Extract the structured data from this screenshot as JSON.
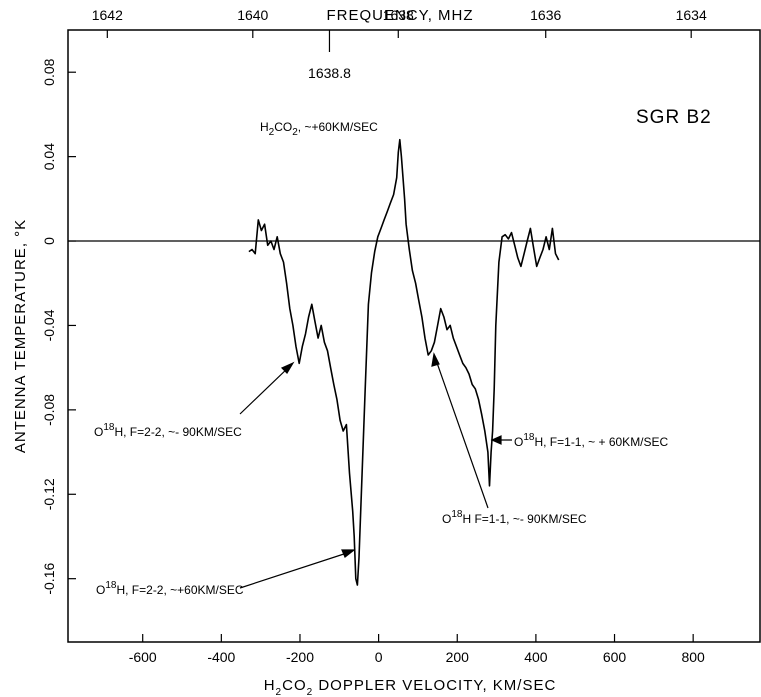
{
  "chart_data": {
    "type": "line",
    "xlabel": {
      "prefix": "H",
      "sub1": "2",
      "mid": "CO",
      "sub2": "2",
      "rest": " DOPPLER VELOCITY,  KM/SEC"
    },
    "ylabel": "ANTENNA TEMPERATURE,   °K",
    "top_xlabel": "FREQUENCY, MHZ",
    "xlim": [
      -790,
      970
    ],
    "ylim": [
      -0.19,
      0.1
    ],
    "x_ticks": [
      -600,
      -400,
      -200,
      0,
      200,
      400,
      600,
      800
    ],
    "x_tick_labels": [
      "-600",
      "-400",
      "-200",
      "0",
      "200",
      "400",
      "600",
      "800"
    ],
    "y_ticks": [
      0.08,
      0.04,
      0,
      -0.04,
      -0.08,
      -0.12,
      -0.16
    ],
    "y_tick_labels": [
      "0.08",
      "0.04",
      "0",
      "-0.04",
      "-0.08",
      "-0.12",
      "-0.16"
    ],
    "top_ticks": [
      {
        "velocity": -690,
        "label": "1642"
      },
      {
        "velocity": -320,
        "label": "1640"
      },
      {
        "velocity": 50,
        "label": "1638"
      },
      {
        "velocity": 425,
        "label": "1636"
      },
      {
        "velocity": 795,
        "label": "1634"
      }
    ],
    "reference_mark": {
      "velocity": -125,
      "label": "1638.8"
    },
    "zero_line": true,
    "series": [
      {
        "x": [
          -330,
          -322,
          -314,
          -306,
          -298,
          -290,
          -282,
          -274,
          -266,
          -258,
          -250,
          -242,
          -234,
          -226,
          -218,
          -210,
          -202,
          -194,
          -186,
          -178,
          -170,
          -162,
          -154,
          -146,
          -138,
          -130,
          -122,
          -114,
          -106,
          -98,
          -90,
          -82,
          -74,
          -66,
          -62,
          -58,
          -54,
          -50,
          -42,
          -34,
          -26,
          -18,
          -10,
          -2,
          6,
          14,
          22,
          30,
          38,
          46,
          50,
          54,
          58,
          62,
          66,
          70,
          78,
          86,
          94,
          102,
          110,
          118,
          126,
          134,
          142,
          150,
          158,
          166,
          174,
          182,
          190,
          198,
          206,
          214,
          222,
          230,
          238,
          246,
          254,
          262,
          270,
          278,
          282,
          286,
          290,
          294,
          298,
          306,
          314,
          322,
          330,
          338,
          346,
          354,
          362,
          370,
          378,
          386,
          394,
          402,
          410,
          418,
          426,
          434,
          442,
          450,
          458
        ],
        "y": [
          -0.005,
          -0.004,
          -0.006,
          0.01,
          0.005,
          0.008,
          -0.002,
          0.0,
          -0.004,
          0.002,
          -0.006,
          -0.01,
          -0.02,
          -0.032,
          -0.04,
          -0.05,
          -0.058,
          -0.05,
          -0.044,
          -0.036,
          -0.03,
          -0.038,
          -0.046,
          -0.04,
          -0.048,
          -0.052,
          -0.06,
          -0.068,
          -0.075,
          -0.085,
          -0.09,
          -0.087,
          -0.11,
          -0.128,
          -0.14,
          -0.16,
          -0.163,
          -0.15,
          -0.11,
          -0.07,
          -0.03,
          -0.015,
          -0.005,
          0.002,
          0.006,
          0.01,
          0.014,
          0.018,
          0.022,
          0.03,
          0.042,
          0.048,
          0.04,
          0.03,
          0.02,
          0.008,
          -0.004,
          -0.014,
          -0.02,
          -0.028,
          -0.036,
          -0.046,
          -0.054,
          -0.052,
          -0.048,
          -0.04,
          -0.032,
          -0.036,
          -0.042,
          -0.04,
          -0.046,
          -0.05,
          -0.054,
          -0.058,
          -0.06,
          -0.063,
          -0.068,
          -0.07,
          -0.075,
          -0.082,
          -0.09,
          -0.1,
          -0.116,
          -0.1,
          -0.09,
          -0.07,
          -0.04,
          -0.01,
          0.002,
          0.003,
          0.001,
          0.004,
          -0.002,
          -0.008,
          -0.012,
          -0.006,
          0.0,
          0.006,
          -0.003,
          -0.012,
          -0.008,
          -0.004,
          0.002,
          -0.004,
          0.006,
          -0.006,
          -0.009
        ]
      }
    ],
    "annotations": [
      {
        "id": "h2co",
        "prefix": "H",
        "sub": "2",
        "mid": "CO",
        "sub2": "2",
        "rest": ", ~+60KM/SEC"
      },
      {
        "id": "source",
        "text": "SGR  B2"
      },
      {
        "id": "o18h-22-m90",
        "prefix": "O",
        "sup": "18",
        "rest": "H,  F=2-2, ~- 90KM/SEC"
      },
      {
        "id": "o18h-22-p60",
        "prefix": "O",
        "sup": "18",
        "rest": "H,  F=2-2, ~+60KM/SEC"
      },
      {
        "id": "o18h-11-p60",
        "prefix": "O",
        "sup": "18",
        "rest": "H,  F=1-1,  ~ + 60KM/SEC"
      },
      {
        "id": "o18h-11-m90",
        "prefix": "O",
        "sup": "18",
        "rest": "H  F=1-1, ~- 90KM/SEC"
      }
    ]
  }
}
